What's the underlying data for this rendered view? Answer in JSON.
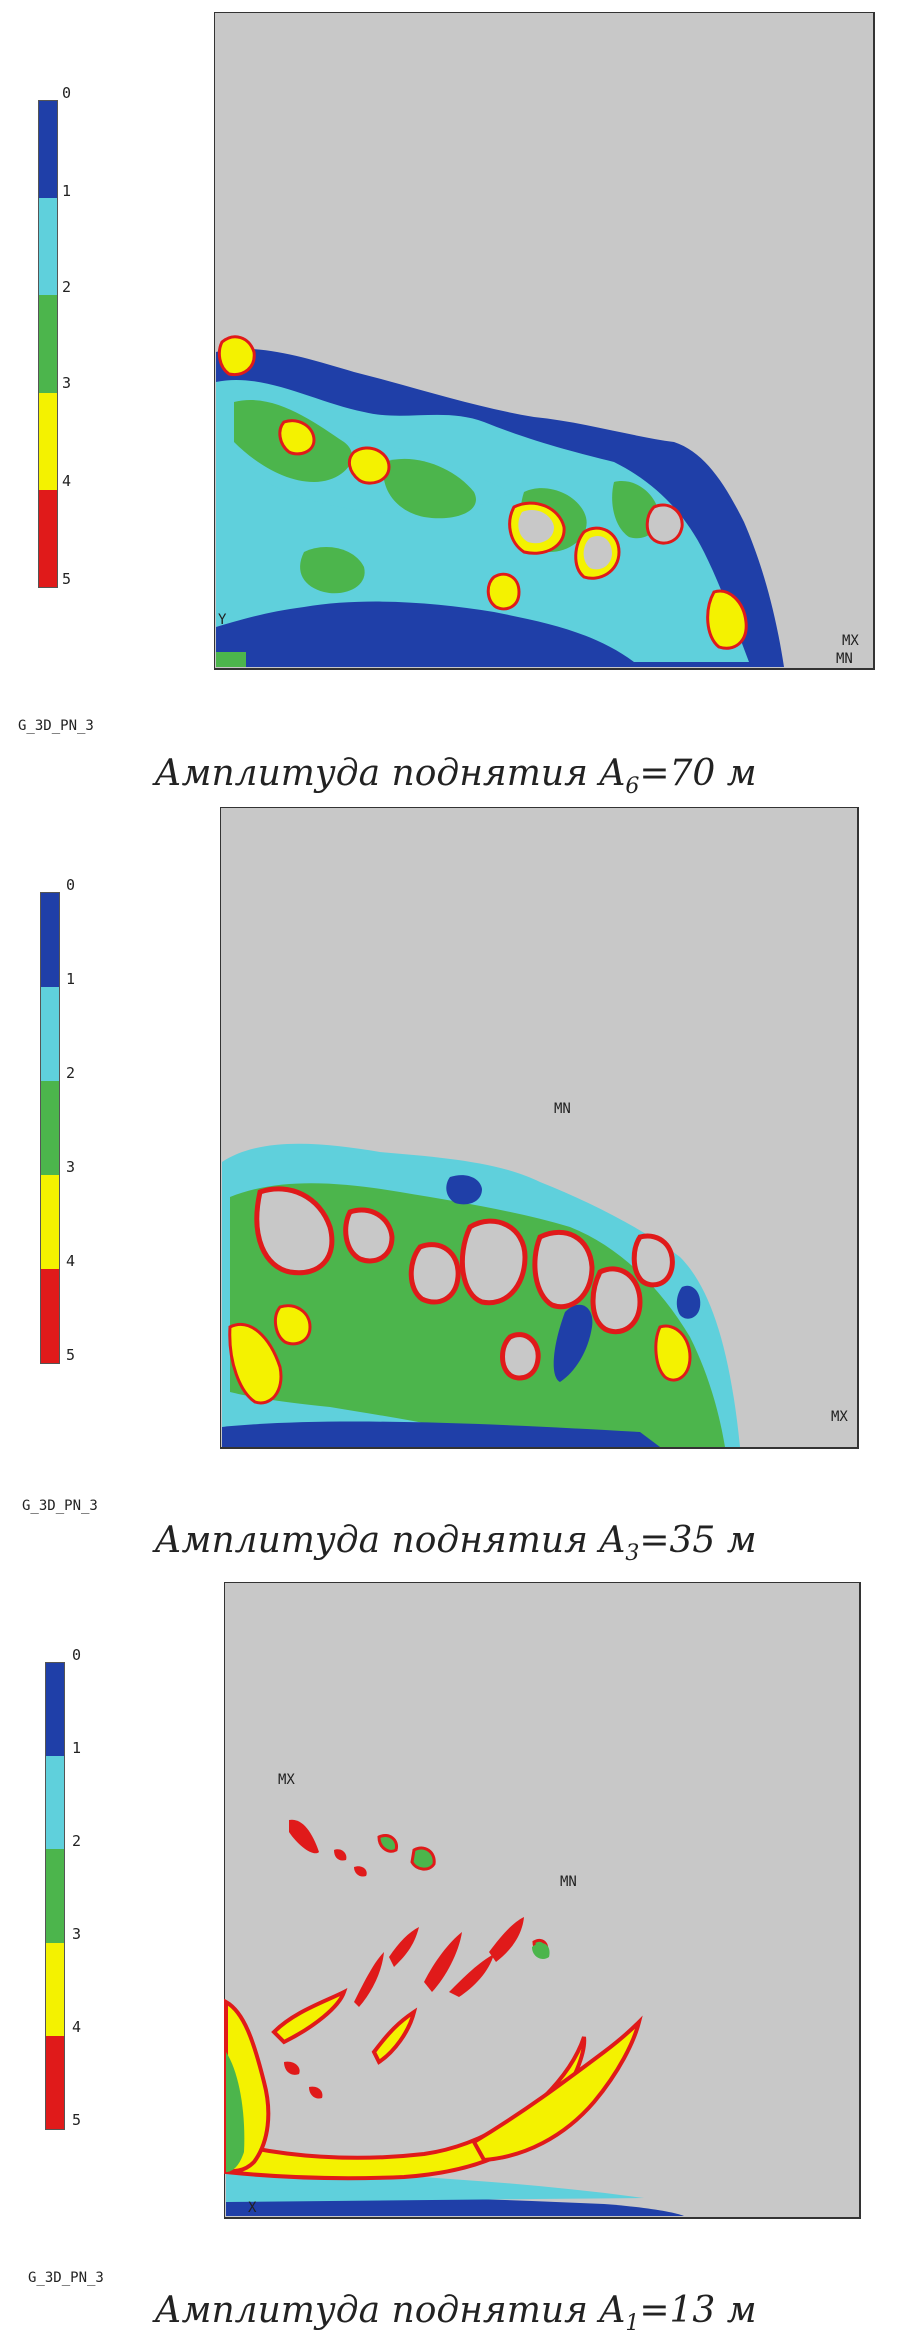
{
  "legend": {
    "ticks": [
      "0",
      "1",
      "2",
      "3",
      "4",
      "5"
    ],
    "colors": [
      "#1f3fa8",
      "#5fd0dc",
      "#4cb54c",
      "#f4f200",
      "#e01a1a"
    ]
  },
  "panels": [
    {
      "model_label": "G_3D_PN_3",
      "caption_prefix": "Амплитуда поднятия A",
      "caption_sub": "6",
      "caption_suffix": "=70 м",
      "marks": {
        "mx": "MX",
        "mn": "MN",
        "y": "Y"
      }
    },
    {
      "model_label": "G_3D_PN_3",
      "caption_prefix": "Амплитуда поднятия A",
      "caption_sub": "3",
      "caption_suffix": "=35 м",
      "marks": {
        "mx": "MX",
        "mn": "MN"
      }
    },
    {
      "model_label": "G_3D_PN_3",
      "caption_prefix": "Амплитуда поднятия A",
      "caption_sub": "1",
      "caption_suffix": "=13 м",
      "marks": {
        "mx": "MX",
        "mn": "MN",
        "x": "X"
      }
    }
  ]
}
